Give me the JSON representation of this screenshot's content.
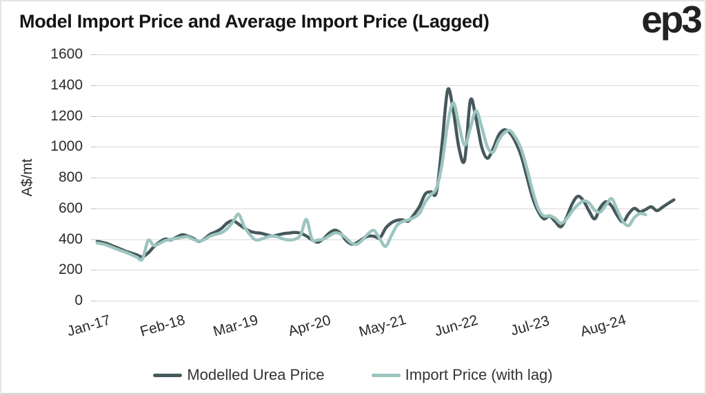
{
  "page": {
    "title": "Model Import Price and Average Import Price (Lagged)",
    "logo_text": "ep3"
  },
  "chart_data": {
    "type": "line",
    "title": "Model Import Price and Average Import Price (Lagged)",
    "xlabel": "",
    "ylabel": "A$/mt",
    "ylim": [
      0,
      1600
    ],
    "y_ticks": [
      0,
      200,
      400,
      600,
      800,
      1000,
      1200,
      1400,
      1600
    ],
    "grid": "horizontal",
    "grid_color": "#d9d9d9",
    "legend_position": "bottom",
    "x_unit": "monthly from Jan-17",
    "x_tick_indices": [
      0,
      13,
      26,
      39,
      52,
      65,
      78,
      91
    ],
    "x_tick_labels": [
      "Jan-17",
      "Feb-18",
      "Mar-19",
      "Apr-20",
      "May-21",
      "Jun-22",
      "Jul-23",
      "Aug-24"
    ],
    "series": [
      {
        "name": "Modelled Urea Price",
        "color": "#46585c",
        "values": [
          385,
          378,
          368,
          352,
          338,
          322,
          310,
          298,
          285,
          310,
          350,
          380,
          400,
          395,
          412,
          428,
          420,
          405,
          385,
          403,
          432,
          448,
          470,
          505,
          520,
          498,
          472,
          452,
          442,
          438,
          428,
          420,
          428,
          436,
          440,
          444,
          438,
          420,
          395,
          380,
          402,
          438,
          458,
          440,
          393,
          368,
          378,
          403,
          420,
          418,
          408,
          470,
          505,
          522,
          525,
          516,
          558,
          612,
          692,
          708,
          705,
          1020,
          1370,
          1230,
          990,
          915,
          1300,
          1185,
          1000,
          925,
          985,
          1075,
          1110,
          1090,
          1030,
          940,
          805,
          670,
          580,
          532,
          550,
          515,
          480,
          540,
          628,
          678,
          650,
          583,
          532,
          606,
          643,
          615,
          552,
          512,
          565,
          600,
          578,
          592,
          610,
          585,
          608,
          632,
          655
        ]
      },
      {
        "name": "Import Price (with lag)",
        "color": "#9cc5bf",
        "values": [
          375,
          368,
          357,
          342,
          328,
          315,
          300,
          283,
          270,
          392,
          358,
          372,
          390,
          398,
          405,
          412,
          415,
          398,
          388,
          398,
          420,
          432,
          442,
          468,
          512,
          562,
          482,
          430,
          395,
          400,
          413,
          420,
          414,
          400,
          394,
          400,
          428,
          528,
          398,
          394,
          400,
          420,
          440,
          434,
          408,
          374,
          368,
          398,
          438,
          456,
          400,
          353,
          420,
          488,
          514,
          524,
          540,
          568,
          640,
          688,
          730,
          890,
          1150,
          1285,
          1140,
          1010,
          1120,
          1235,
          1130,
          1000,
          965,
          1040,
          1090,
          1105,
          1060,
          985,
          860,
          715,
          600,
          550,
          552,
          535,
          503,
          530,
          582,
          622,
          648,
          635,
          588,
          576,
          622,
          663,
          588,
          515,
          488,
          540,
          566,
          558
        ]
      }
    ]
  }
}
